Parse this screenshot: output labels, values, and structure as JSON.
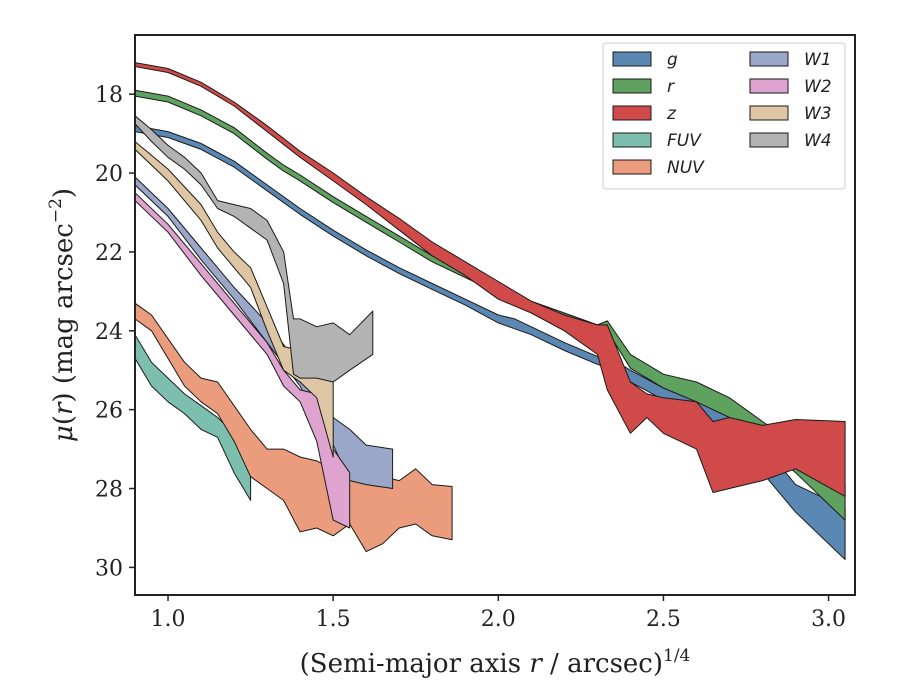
{
  "chart_data": {
    "type": "area",
    "xlabel": "(Semi-major axis r / arcsec)",
    "xlabel_parts": {
      "pre": "(Semi-major axis ",
      "var": "r",
      "post": " / arcsec)",
      "sup": "1/4"
    },
    "ylabel": "μ(r) (mag arcsec−2)",
    "ylabel_parts": {
      "mu": "μ",
      "open": "(",
      "var": "r",
      "close": ") (mag arcsec",
      "sup": "−2",
      "end": ")"
    },
    "xlim": [
      0.9,
      3.08
    ],
    "ylim": [
      30.7,
      16.5
    ],
    "y_inverted": true,
    "xticks": [
      1.0,
      1.5,
      2.0,
      2.5,
      3.0
    ],
    "xtick_labels": [
      "1.0",
      "1.5",
      "2.0",
      "2.5",
      "3.0"
    ],
    "yticks": [
      18,
      20,
      22,
      24,
      26,
      28,
      30
    ],
    "ytick_labels": [
      "18",
      "20",
      "22",
      "24",
      "26",
      "28",
      "30"
    ],
    "grid": false,
    "legend_position": "top-right",
    "legend_columns": 2,
    "series": [
      {
        "name": "g",
        "color": "#5b87b3",
        "x": [
          0.9,
          1.0,
          1.1,
          1.2,
          1.3,
          1.4,
          1.5,
          1.6,
          1.7,
          1.8,
          1.9,
          2.0,
          2.05,
          2.1,
          2.2,
          2.3,
          2.35,
          2.4,
          2.5,
          2.6,
          2.7,
          2.8,
          2.9,
          3.05
        ],
        "lo": [
          18.8,
          18.95,
          19.25,
          19.7,
          20.3,
          20.9,
          21.45,
          21.95,
          22.4,
          22.8,
          23.2,
          23.6,
          23.7,
          23.9,
          24.3,
          24.65,
          24.75,
          25.0,
          25.45,
          25.75,
          26.1,
          26.9,
          27.9,
          28.5
        ],
        "hi": [
          18.95,
          19.1,
          19.4,
          19.85,
          20.45,
          21.05,
          21.6,
          22.1,
          22.55,
          22.95,
          23.35,
          23.8,
          23.95,
          24.1,
          24.5,
          24.85,
          25.0,
          25.3,
          25.75,
          26.15,
          26.6,
          27.6,
          28.6,
          29.8
        ]
      },
      {
        "name": "r",
        "color": "#5fa15f",
        "x": [
          0.9,
          1.0,
          1.1,
          1.2,
          1.3,
          1.35,
          1.4,
          1.5,
          1.6,
          1.7,
          1.8,
          1.9,
          2.0,
          2.1,
          2.2,
          2.3,
          2.33,
          2.4,
          2.5,
          2.6,
          2.7,
          2.8,
          2.9,
          3.05
        ],
        "lo": [
          17.9,
          18.05,
          18.4,
          18.85,
          19.5,
          19.8,
          20.05,
          20.6,
          21.1,
          21.6,
          22.1,
          22.5,
          22.9,
          23.25,
          23.55,
          23.85,
          23.75,
          24.6,
          25.1,
          25.3,
          25.7,
          26.3,
          26.9,
          27.9
        ],
        "hi": [
          18.05,
          18.2,
          18.55,
          19.0,
          19.65,
          19.95,
          20.2,
          20.75,
          21.25,
          21.75,
          22.25,
          22.65,
          23.05,
          23.4,
          23.7,
          24.05,
          24.0,
          24.95,
          25.45,
          25.8,
          26.2,
          26.9,
          27.6,
          28.8
        ]
      },
      {
        "name": "z",
        "color": "#d04a4a",
        "x": [
          0.9,
          1.0,
          1.1,
          1.2,
          1.3,
          1.4,
          1.5,
          1.6,
          1.7,
          1.8,
          1.9,
          2.0,
          2.1,
          2.2,
          2.3,
          2.33,
          2.4,
          2.45,
          2.5,
          2.6,
          2.65,
          2.7,
          2.8,
          2.9,
          3.05
        ],
        "lo": [
          17.2,
          17.35,
          17.7,
          18.2,
          18.8,
          19.45,
          20.0,
          20.6,
          21.15,
          21.75,
          22.25,
          22.75,
          23.25,
          23.6,
          23.85,
          23.85,
          25.3,
          25.6,
          25.7,
          25.8,
          26.3,
          26.2,
          26.4,
          26.25,
          26.3
        ],
        "hi": [
          17.3,
          17.45,
          17.8,
          18.3,
          18.95,
          19.6,
          20.2,
          20.8,
          21.45,
          22.1,
          22.6,
          23.2,
          23.55,
          24.0,
          24.6,
          25.5,
          26.6,
          26.2,
          26.6,
          27.0,
          28.1,
          28.0,
          27.8,
          27.5,
          28.2
        ]
      },
      {
        "name": "FUV",
        "color": "#7dbfaf",
        "x": [
          0.9,
          0.95,
          1.0,
          1.05,
          1.1,
          1.15,
          1.2,
          1.25
        ],
        "lo": [
          24.1,
          24.8,
          25.2,
          25.6,
          25.9,
          26.2,
          26.6,
          27.3
        ],
        "hi": [
          24.7,
          25.4,
          25.8,
          26.1,
          26.5,
          26.7,
          27.6,
          28.3
        ]
      },
      {
        "name": "NUV",
        "color": "#eb9c7d",
        "x": [
          0.9,
          0.95,
          1.0,
          1.05,
          1.1,
          1.15,
          1.2,
          1.25,
          1.3,
          1.35,
          1.4,
          1.45,
          1.5,
          1.55,
          1.6,
          1.65,
          1.7,
          1.75,
          1.8,
          1.86
        ],
        "lo": [
          23.3,
          23.6,
          24.2,
          24.8,
          25.2,
          25.3,
          25.9,
          26.5,
          27.0,
          27.0,
          27.2,
          27.3,
          27.5,
          27.8,
          27.6,
          27.7,
          27.8,
          27.5,
          27.9,
          27.95
        ],
        "hi": [
          23.7,
          24.0,
          24.7,
          25.4,
          25.8,
          26.1,
          26.8,
          27.7,
          28.0,
          28.3,
          29.1,
          29.0,
          29.2,
          28.9,
          29.6,
          29.4,
          29.0,
          28.9,
          29.2,
          29.3
        ]
      },
      {
        "name": "W1",
        "color": "#9aa7c8",
        "x": [
          0.9,
          1.0,
          1.1,
          1.2,
          1.3,
          1.4,
          1.45,
          1.5,
          1.55,
          1.6,
          1.68
        ],
        "lo": [
          20.1,
          20.9,
          21.9,
          22.9,
          23.8,
          24.9,
          25.4,
          26.2,
          26.5,
          26.9,
          27.0
        ],
        "hi": [
          20.3,
          21.1,
          22.2,
          23.2,
          24.3,
          25.4,
          26.3,
          26.9,
          27.8,
          27.9,
          28.0
        ]
      },
      {
        "name": "W2",
        "color": "#dea3cf",
        "x": [
          0.9,
          1.0,
          1.1,
          1.2,
          1.3,
          1.35,
          1.4,
          1.45,
          1.5,
          1.55
        ],
        "lo": [
          20.5,
          21.3,
          22.3,
          23.3,
          24.3,
          25.0,
          25.5,
          25.6,
          27.0,
          27.6
        ],
        "hi": [
          20.7,
          21.5,
          22.6,
          23.6,
          24.6,
          25.4,
          25.8,
          26.8,
          28.8,
          29.0
        ]
      },
      {
        "name": "W3",
        "color": "#dec5a3",
        "x": [
          0.9,
          1.0,
          1.1,
          1.15,
          1.2,
          1.25,
          1.3,
          1.35,
          1.4,
          1.45,
          1.5
        ],
        "lo": [
          19.2,
          19.9,
          20.8,
          21.5,
          22.0,
          22.4,
          23.4,
          24.4,
          24.5,
          24.9,
          25.0
        ],
        "hi": [
          19.4,
          20.2,
          21.2,
          21.9,
          22.4,
          22.9,
          24.0,
          25.0,
          25.3,
          25.7,
          27.2
        ]
      },
      {
        "name": "W4",
        "color": "#b3b3b3",
        "x": [
          0.9,
          0.95,
          1.0,
          1.05,
          1.1,
          1.15,
          1.2,
          1.25,
          1.3,
          1.35,
          1.38,
          1.4,
          1.45,
          1.5,
          1.55,
          1.62
        ],
        "lo": [
          18.55,
          18.9,
          19.3,
          19.6,
          20.0,
          20.7,
          20.8,
          20.9,
          21.2,
          22.0,
          23.7,
          23.7,
          23.9,
          23.8,
          24.1,
          23.5
        ],
        "hi": [
          18.75,
          19.2,
          19.6,
          19.9,
          20.3,
          20.9,
          21.1,
          21.4,
          21.7,
          22.8,
          25.1,
          25.2,
          25.2,
          25.3,
          25.0,
          24.6
        ]
      }
    ]
  }
}
